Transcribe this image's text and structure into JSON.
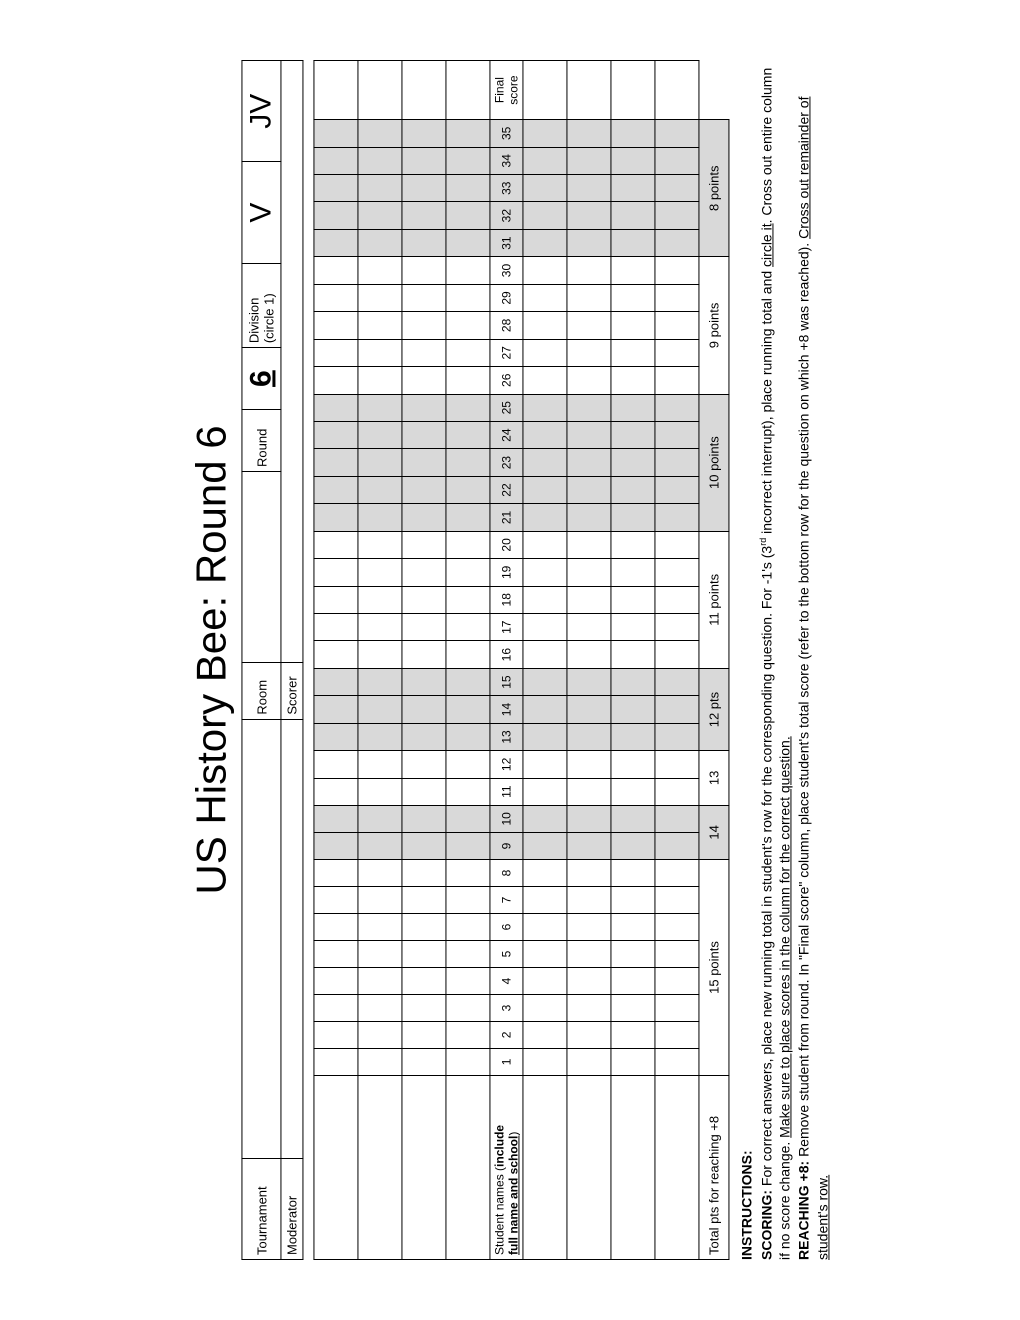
{
  "title": "US History Bee: Round 6",
  "header": {
    "tournament_label": "Tournament",
    "moderator_label": "Moderator",
    "room_label": "Room",
    "scorer_label": "Scorer",
    "round_label": "Round",
    "round_value": "6",
    "division_label": "Division",
    "division_sub": "(circle 1)",
    "division_v": "V",
    "division_jv": "JV"
  },
  "grid": {
    "student_label_1": "Student names (include",
    "student_label_2": "full name and school)",
    "final_label_1": "Final",
    "final_label_2": "score",
    "cols": [
      "1",
      "2",
      "3",
      "4",
      "5",
      "6",
      "7",
      "8",
      "9",
      "10",
      "11",
      "12",
      "13",
      "14",
      "15",
      "16",
      "17",
      "18",
      "19",
      "20",
      "21",
      "22",
      "23",
      "24",
      "25",
      "26",
      "27",
      "28",
      "29",
      "30",
      "31",
      "32",
      "33",
      "34",
      "35"
    ],
    "shade_groups": [
      [
        9,
        10
      ],
      [
        13,
        14,
        15
      ],
      [
        21,
        22,
        23,
        24,
        25
      ],
      [
        31,
        32,
        33,
        34,
        35
      ]
    ]
  },
  "points_row": {
    "label": "Total pts for reaching +8",
    "segments": [
      {
        "span": 8,
        "text": "15 points",
        "shade": false
      },
      {
        "span": 2,
        "text": "14",
        "shade": true
      },
      {
        "span": 2,
        "text": "13",
        "shade": false
      },
      {
        "span": 3,
        "text": "12 pts",
        "shade": true
      },
      {
        "span": 5,
        "text": "11 points",
        "shade": false
      },
      {
        "span": 5,
        "text": "10 points",
        "shade": true
      },
      {
        "span": 5,
        "text": "9 points",
        "shade": false
      },
      {
        "span": 5,
        "text": "8 points",
        "shade": true
      }
    ]
  },
  "instructions": {
    "heading": "INSTRUCTIONS:",
    "scoring_label": "SCORING:",
    "scoring_text_a": " For correct answers, place new running total in student's row for the corresponding question.  For -1's (3",
    "scoring_sup": "rd",
    "scoring_text_b": " incorrect interrupt), place running total and ",
    "scoring_u1": "circle it",
    "scoring_text_c": ".  Cross out entire column if no score change.  ",
    "scoring_u2": "Make sure to place scores in the column for the correct question.",
    "reach_label": "REACHING +8:",
    "reach_text_a": " Remove student from round.  In \"Final score\" column, place student's total score (refer to the bottom row for the question on which +8 was reached).  ",
    "reach_u": "Cross out remainder of student's row."
  },
  "colors": {
    "shade": "#d9d9d9",
    "border": "#000000",
    "bg": "#ffffff"
  }
}
